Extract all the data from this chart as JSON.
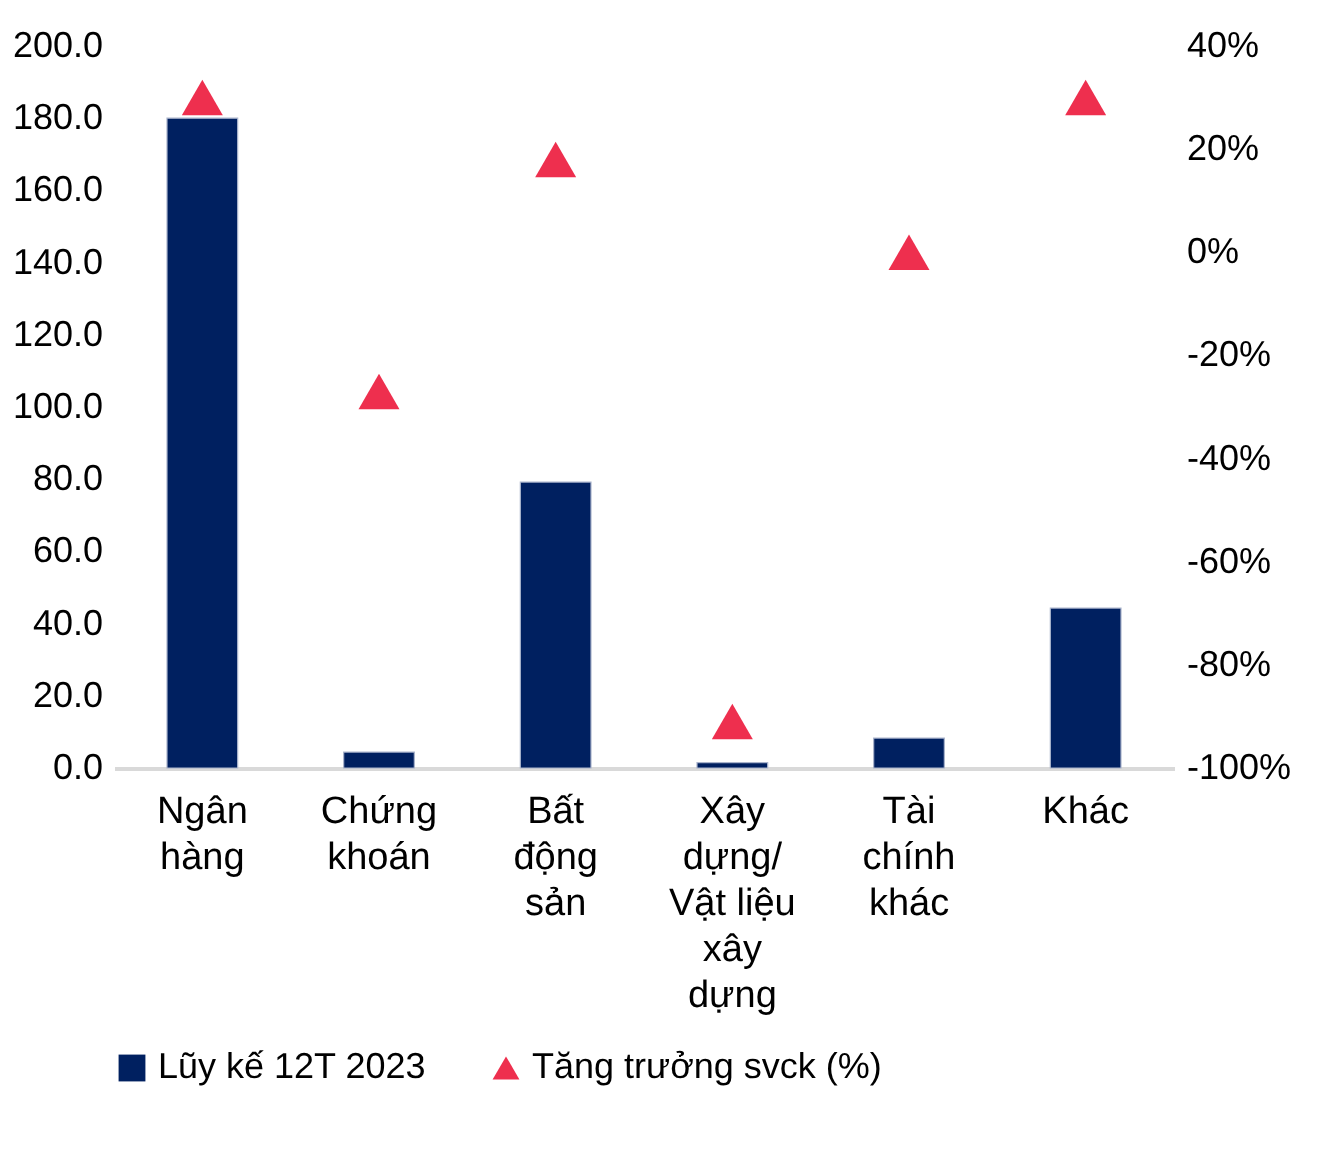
{
  "chart_data": {
    "type": "bar",
    "categories": [
      "Ngân\nhàng",
      "Chứng\nkhoán",
      "Bất\nđộng\nsản",
      "Xây\ndựng/\nVật liệu\nxây\ndựng",
      "Tài\nchính\nkhác",
      "Khác"
    ],
    "series": [
      {
        "name": "Lũy kế 12T 2023",
        "type": "bar",
        "color": "#002060",
        "values": [
          180,
          4.4,
          79.2,
          1.5,
          8.3,
          44.3
        ]
      },
      {
        "name": "Tăng trưởng svck (%)",
        "type": "scatter",
        "axis": "y2",
        "marker": "triangle",
        "color": "#ee2f4e",
        "values": [
          30,
          -27,
          18,
          -91,
          0,
          30
        ]
      }
    ],
    "ylim": [
      0,
      200
    ],
    "yticks": [
      {
        "value": 0,
        "label": "0.0"
      },
      {
        "value": 20,
        "label": "20.0"
      },
      {
        "value": 40,
        "label": "40.0"
      },
      {
        "value": 60,
        "label": "60.0"
      },
      {
        "value": 80,
        "label": "80.0"
      },
      {
        "value": 100,
        "label": "100.0"
      },
      {
        "value": 120,
        "label": "120.0"
      },
      {
        "value": 140,
        "label": "140.0"
      },
      {
        "value": 160,
        "label": "160.0"
      },
      {
        "value": 180,
        "label": "180.0"
      },
      {
        "value": 200,
        "label": "200.0"
      }
    ],
    "y2lim": [
      -100,
      40
    ],
    "y2ticks": [
      {
        "value": -100,
        "label": "-100%"
      },
      {
        "value": -80,
        "label": "-80%"
      },
      {
        "value": -60,
        "label": "-60%"
      },
      {
        "value": -40,
        "label": "-40%"
      },
      {
        "value": -20,
        "label": "-20%"
      },
      {
        "value": 0,
        "label": "0%"
      },
      {
        "value": 20,
        "label": "20%"
      },
      {
        "value": 40,
        "label": "40%"
      }
    ],
    "grid": false,
    "legend": "bottom"
  }
}
